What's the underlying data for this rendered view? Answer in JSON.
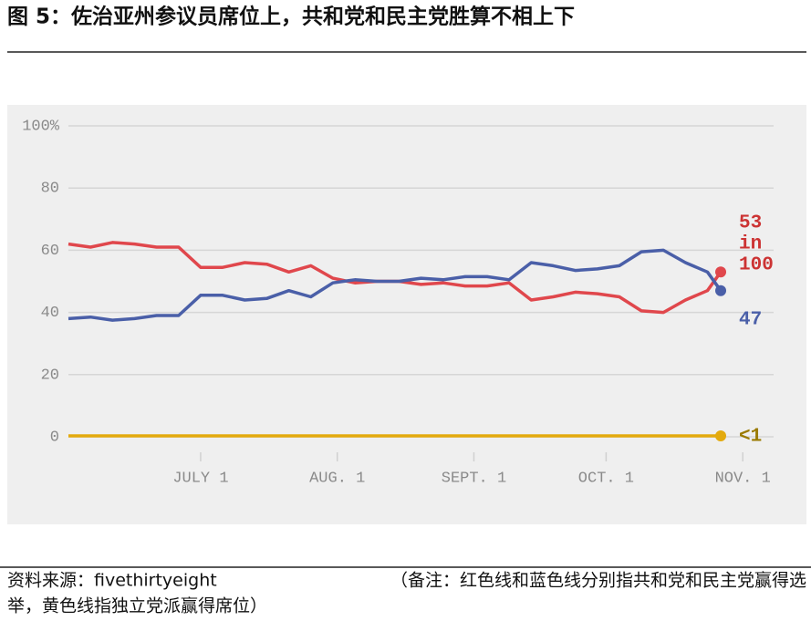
{
  "header": {
    "title": "图 5：佐治亚州参议员席位上，共和党和民主党胜算不相上下"
  },
  "chart_data": {
    "type": "line",
    "x": [
      "06-01",
      "06-06",
      "06-11",
      "06-16",
      "06-21",
      "06-26",
      "07-01",
      "07-06",
      "07-11",
      "07-16",
      "07-21",
      "07-26",
      "07-31",
      "08-05",
      "08-10",
      "08-15",
      "08-20",
      "08-25",
      "08-30",
      "09-04",
      "09-09",
      "09-14",
      "09-19",
      "09-24",
      "09-29",
      "10-04",
      "10-09",
      "10-14",
      "10-19",
      "10-24",
      "10-27"
    ],
    "series": [
      {
        "color": "#e0474c",
        "label_color": "#cc3333",
        "end_label": "53 in 100",
        "values": [
          62,
          61,
          62.5,
          62,
          61,
          61,
          54.5,
          54.5,
          56,
          55.5,
          53,
          55,
          51,
          49.5,
          50,
          50,
          49,
          49.5,
          48.5,
          48.5,
          49.5,
          44,
          45,
          46.5,
          46,
          45,
          40.5,
          40,
          44,
          47,
          53
        ]
      },
      {
        "color": "#4a5fa8",
        "label_color": "#4a5fa8",
        "end_label": "47",
        "values": [
          38,
          38.5,
          37.5,
          38,
          39,
          39,
          45.5,
          45.5,
          44,
          44.5,
          47,
          45,
          49.5,
          50.5,
          50,
          50,
          51,
          50.5,
          51.5,
          51.5,
          50.5,
          56,
          55,
          53.5,
          54,
          55,
          59.5,
          60,
          56,
          53,
          47
        ]
      },
      {
        "color": "#e3aa0e",
        "label_color": "#9a7a00",
        "end_label": "<1",
        "values": [
          0.3,
          0.3,
          0.3,
          0.3,
          0.3,
          0.3,
          0.3,
          0.3,
          0.3,
          0.3,
          0.3,
          0.3,
          0.3,
          0.3,
          0.3,
          0.3,
          0.3,
          0.3,
          0.3,
          0.3,
          0.3,
          0.3,
          0.3,
          0.3,
          0.3,
          0.3,
          0.3,
          0.3,
          0.3,
          0.3,
          0.3
        ]
      }
    ],
    "xlim": [
      "06-01",
      "11-08"
    ],
    "xticks": [
      {
        "value": "07-01",
        "label": "JULY 1"
      },
      {
        "value": "08-01",
        "label": "AUG. 1"
      },
      {
        "value": "09-01",
        "label": "SEPT. 1"
      },
      {
        "value": "10-01",
        "label": "OCT. 1"
      },
      {
        "value": "11-01",
        "label": "NOV. 1"
      }
    ],
    "ylim": [
      0,
      100
    ],
    "yticks": [
      0,
      20,
      40,
      60,
      80,
      {
        "value": 100,
        "label": "100%"
      }
    ],
    "grid": true
  },
  "footer": {
    "source": "资料来源：fivethirtyeight",
    "note_line1": "（备注：红色线和蓝色线分别指共和党和民主党赢得选",
    "note_line2": "举，黄色线指独立党派赢得席位）"
  }
}
